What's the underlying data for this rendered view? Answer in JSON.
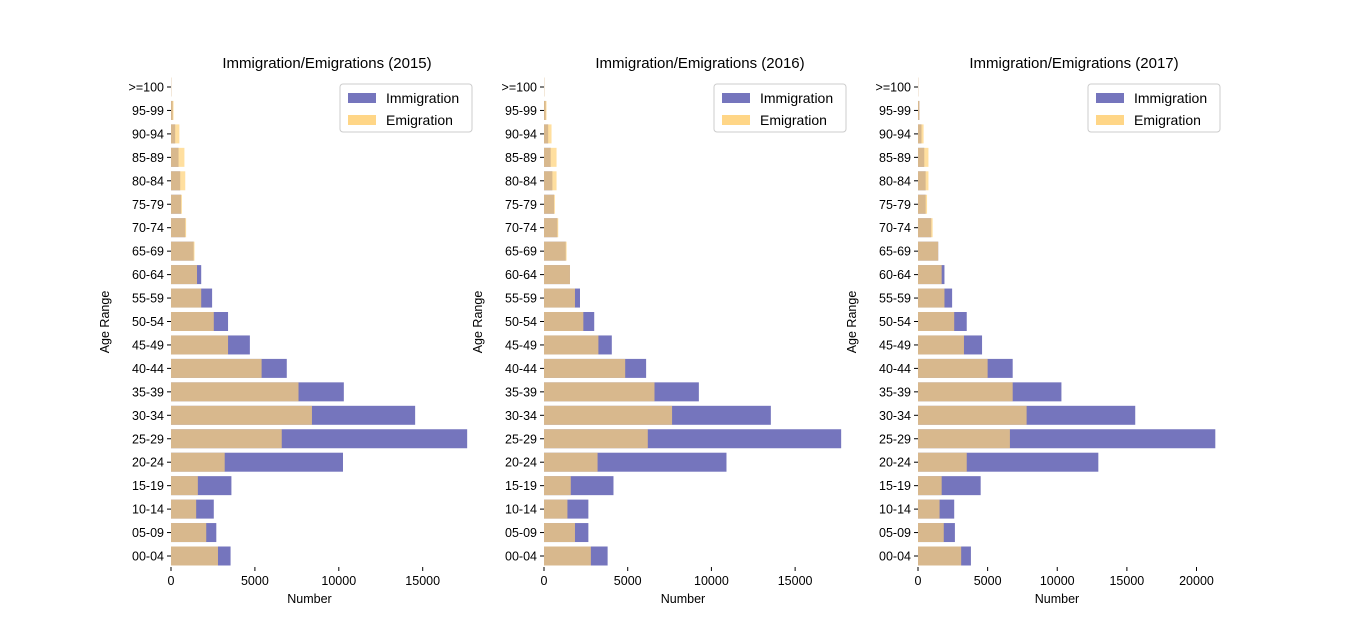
{
  "chart_data": [
    {
      "type": "bar",
      "orientation": "horizontal",
      "overlay": true,
      "title": "Immigration/Emigrations (2015)",
      "xlabel": "Number",
      "ylabel": "Age Range",
      "xlim": [
        0,
        17700
      ],
      "xticks": [
        "0",
        "5000",
        "10000",
        "15000"
      ],
      "categories": [
        "00-04",
        "05-09",
        "10-14",
        "15-19",
        "20-24",
        "25-29",
        "30-34",
        "35-39",
        "40-44",
        "45-49",
        "50-54",
        "55-59",
        "60-64",
        "65-69",
        "70-74",
        "75-79",
        "80-84",
        "85-89",
        "90-94",
        "95-99",
        ">=100"
      ],
      "series": [
        {
          "name": "Immigration",
          "color": "#7575bd",
          "values": [
            3550,
            2700,
            2550,
            3600,
            10250,
            17650,
            14550,
            10300,
            6900,
            4700,
            3400,
            2450,
            1800,
            1350,
            850,
            600,
            550,
            450,
            250,
            100,
            10
          ]
        },
        {
          "name": "Emigration",
          "color": "#ffd27a",
          "values": [
            2800,
            2100,
            1500,
            1600,
            3200,
            6600,
            8400,
            7600,
            5400,
            3400,
            2550,
            1800,
            1550,
            1400,
            900,
            650,
            850,
            800,
            500,
            150,
            20
          ]
        }
      ],
      "legend": "upper-right"
    },
    {
      "type": "bar",
      "orientation": "horizontal",
      "overlay": true,
      "title": "Immigration/Emigrations (2016)",
      "xlabel": "Number",
      "ylabel": "Age Range",
      "xlim": [
        0,
        17800
      ],
      "xticks": [
        "0",
        "5000",
        "10000",
        "15000"
      ],
      "categories": [
        "00-04",
        "05-09",
        "10-14",
        "15-19",
        "20-24",
        "25-29",
        "30-34",
        "35-39",
        "40-44",
        "45-49",
        "50-54",
        "55-59",
        "60-64",
        "65-69",
        "70-74",
        "75-79",
        "80-84",
        "85-89",
        "90-94",
        "95-99",
        ">=100"
      ],
      "series": [
        {
          "name": "Immigration",
          "color": "#7575bd",
          "values": [
            3800,
            2650,
            2650,
            4150,
            10900,
            17750,
            13550,
            9250,
            6100,
            4050,
            3000,
            2150,
            1550,
            1300,
            800,
            600,
            500,
            400,
            250,
            100,
            10
          ]
        },
        {
          "name": "Emigration",
          "color": "#ffd27a",
          "values": [
            2800,
            1850,
            1400,
            1600,
            3200,
            6200,
            7650,
            6600,
            4850,
            3250,
            2350,
            1850,
            1550,
            1350,
            850,
            650,
            750,
            750,
            450,
            150,
            20
          ]
        }
      ],
      "legend": "upper-right"
    },
    {
      "type": "bar",
      "orientation": "horizontal",
      "overlay": true,
      "title": "Immigration/Emigrations (2017)",
      "xlabel": "Number",
      "ylabel": "Age Range",
      "xlim": [
        0,
        21400
      ],
      "xticks": [
        "0",
        "5000",
        "10000",
        "15000",
        "20000"
      ],
      "categories": [
        "00-04",
        "05-09",
        "10-14",
        "15-19",
        "20-24",
        "25-29",
        "30-34",
        "35-39",
        "40-44",
        "45-49",
        "50-54",
        "55-59",
        "60-64",
        "65-69",
        "70-74",
        "75-79",
        "80-84",
        "85-89",
        "90-94",
        "95-99",
        ">=100"
      ],
      "series": [
        {
          "name": "Immigration",
          "color": "#7575bd",
          "values": [
            3800,
            2650,
            2600,
            4500,
            12950,
            21350,
            15600,
            10300,
            6800,
            4600,
            3500,
            2450,
            1900,
            1450,
            950,
            550,
            550,
            450,
            250,
            100,
            10
          ]
        },
        {
          "name": "Emigration",
          "color": "#ffd27a",
          "values": [
            3100,
            1850,
            1550,
            1700,
            3500,
            6600,
            7800,
            6800,
            5000,
            3300,
            2600,
            1900,
            1700,
            1450,
            1050,
            650,
            750,
            750,
            400,
            100,
            20
          ]
        }
      ],
      "legend": "upper-right"
    }
  ]
}
